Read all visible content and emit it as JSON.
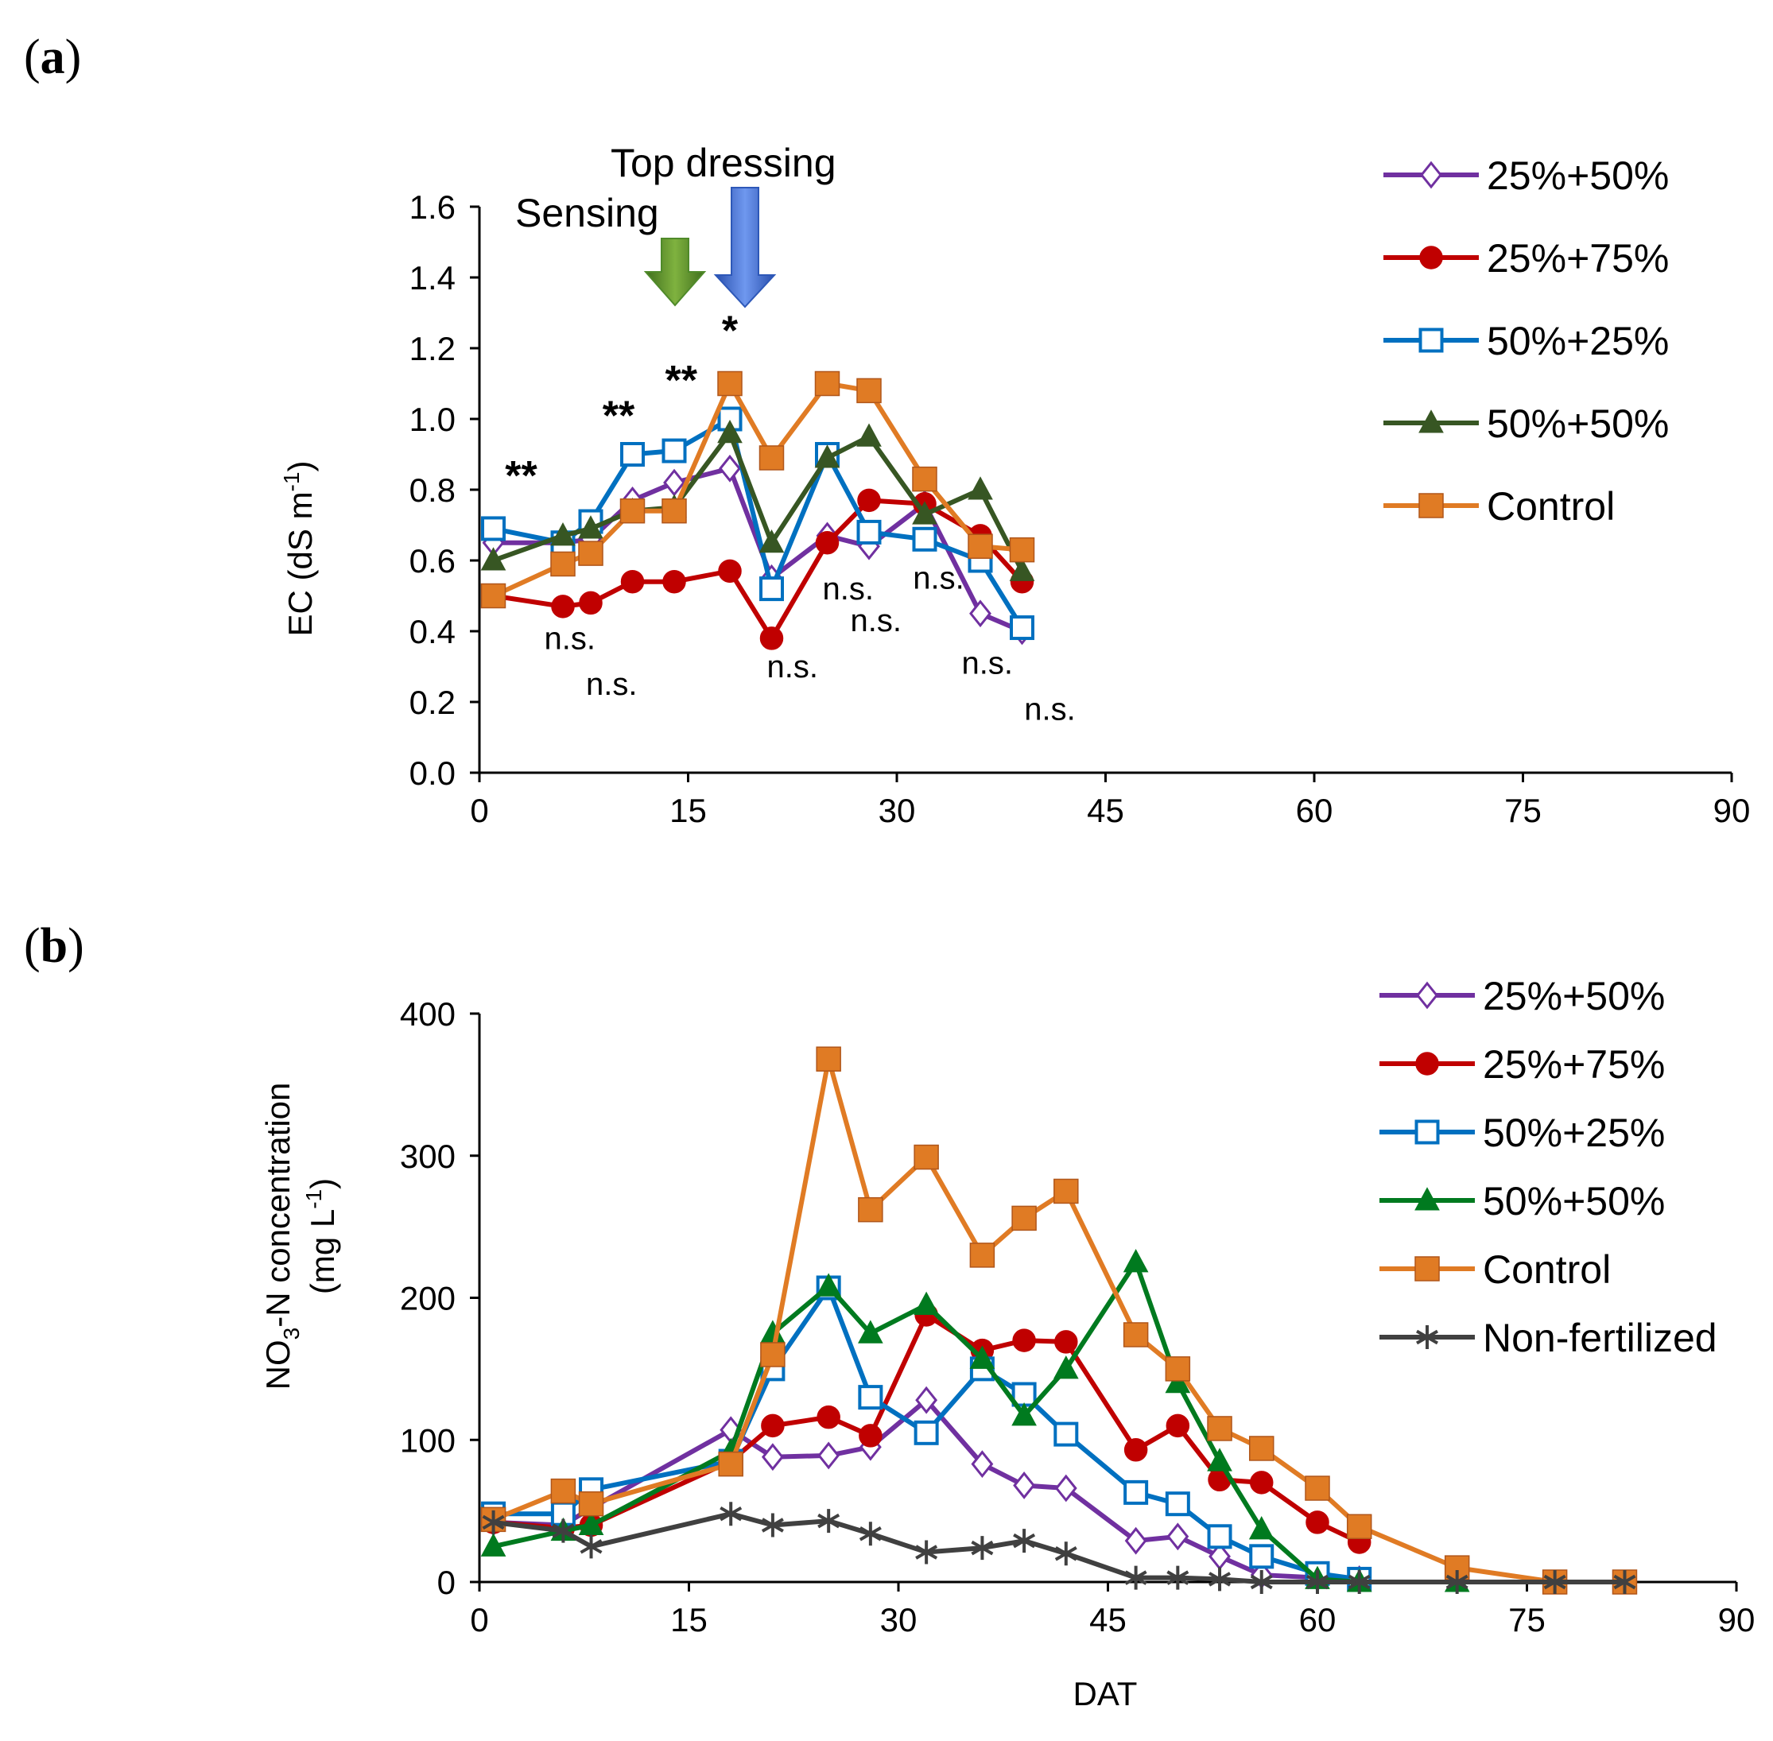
{
  "chart_data": [
    {
      "panel": "(a)",
      "panel_letter": "a",
      "type": "line",
      "xlabel": "",
      "ylabel": "EC  (dS m-1)",
      "ylabel_main": "EC  (dS m",
      "ylabel_sup": "-1",
      "ylabel_close": ")",
      "xlim": [
        0,
        90
      ],
      "ylim": [
        0,
        1.6
      ],
      "xticks": [
        0,
        15,
        30,
        45,
        60,
        75,
        90
      ],
      "yticks": [
        "0.0",
        "0.2",
        "0.4",
        "0.6",
        "0.8",
        "1.0",
        "1.2",
        "1.4",
        "1.6"
      ],
      "grid": false,
      "legend": "right",
      "series": [
        {
          "name": "25%+50%",
          "color": "#7030A0",
          "marker": "open-diamond",
          "x": [
            1,
            6,
            8,
            11,
            14,
            18,
            21,
            25,
            28,
            32,
            36,
            39
          ],
          "y": [
            0.65,
            0.65,
            0.66,
            0.77,
            0.82,
            0.86,
            0.55,
            0.67,
            0.64,
            0.76,
            0.45,
            0.4
          ]
        },
        {
          "name": "25%+75%",
          "color": "#C00000",
          "marker": "filled-circle",
          "x": [
            1,
            6,
            8,
            11,
            14,
            18,
            21,
            25,
            28,
            32,
            36,
            39
          ],
          "y": [
            0.5,
            0.47,
            0.48,
            0.54,
            0.54,
            0.57,
            0.38,
            0.65,
            0.77,
            0.76,
            0.67,
            0.54
          ]
        },
        {
          "name": "50%+25%",
          "color": "#0070C0",
          "marker": "open-square",
          "x": [
            1,
            6,
            8,
            11,
            14,
            18,
            21,
            25,
            28,
            32,
            36,
            39
          ],
          "y": [
            0.69,
            0.65,
            0.71,
            0.9,
            0.91,
            1.0,
            0.52,
            0.9,
            0.68,
            0.66,
            0.6,
            0.41
          ]
        },
        {
          "name": "50%+50%",
          "color": "#375623",
          "marker": "filled-triangle",
          "x": [
            1,
            6,
            8,
            11,
            14,
            18,
            21,
            25,
            28,
            32,
            36,
            39
          ],
          "y": [
            0.6,
            0.67,
            0.69,
            0.74,
            0.75,
            0.96,
            0.65,
            0.89,
            0.95,
            0.73,
            0.8,
            0.57
          ]
        },
        {
          "name": "Control",
          "color": "#E07B24",
          "marker": "filled-square",
          "x": [
            1,
            6,
            8,
            11,
            14,
            18,
            21,
            25,
            28,
            32,
            36,
            39
          ],
          "y": [
            0.5,
            0.59,
            0.62,
            0.74,
            0.74,
            1.1,
            0.89,
            1.1,
            1.08,
            0.83,
            0.64,
            0.63
          ]
        }
      ],
      "annotations": {
        "top_dressing": "Top dressing",
        "sensing": "Sensing",
        "stars": [
          {
            "text": "**",
            "x": 3,
            "y": 0.8
          },
          {
            "text": "**",
            "x": 10,
            "y": 0.97
          },
          {
            "text": "**",
            "x": 14.5,
            "y": 1.07
          },
          {
            "text": "*",
            "x": 18,
            "y": 1.21
          }
        ],
        "ns": [
          {
            "text": "n.s.",
            "x": 6.5,
            "y": 0.35
          },
          {
            "text": "n.s.",
            "x": 9.5,
            "y": 0.22
          },
          {
            "text": "n.s.",
            "x": 22.5,
            "y": 0.27
          },
          {
            "text": "n.s.",
            "x": 26.5,
            "y": 0.49
          },
          {
            "text": "n.s.",
            "x": 28.5,
            "y": 0.4
          },
          {
            "text": "n.s.",
            "x": 33,
            "y": 0.52
          },
          {
            "text": "n.s.",
            "x": 36.5,
            "y": 0.28
          },
          {
            "text": "n.s.",
            "x": 41,
            "y": 0.15
          }
        ]
      }
    },
    {
      "panel": "(b)",
      "panel_letter": "b",
      "type": "line",
      "xlabel": "DAT",
      "ylabel": "NO3-N concentration (mg L-1)",
      "ylabel_line1_a": "NO",
      "ylabel_line1_sub": "3",
      "ylabel_line1_b": "-N concentration",
      "ylabel_line2_a": "(mg L",
      "ylabel_line2_sup": "-1",
      "ylabel_line2_b": ")",
      "xlim": [
        0,
        90
      ],
      "ylim": [
        0,
        400
      ],
      "xticks": [
        0,
        15,
        30,
        45,
        60,
        75,
        90
      ],
      "yticks": [
        "0",
        "100",
        "200",
        "300",
        "400"
      ],
      "grid": false,
      "legend": "top-right",
      "series": [
        {
          "name": "25%+50%",
          "color": "#7030A0",
          "marker": "open-diamond",
          "x": [
            1,
            6,
            8,
            18,
            21,
            25,
            28,
            32,
            36,
            39,
            42,
            47,
            50,
            53,
            56,
            60,
            63
          ],
          "y": [
            42,
            40,
            52,
            107,
            88,
            89,
            95,
            128,
            83,
            68,
            66,
            29,
            32,
            18,
            5,
            3,
            2
          ]
        },
        {
          "name": "25%+75%",
          "color": "#C00000",
          "marker": "filled-circle",
          "x": [
            1,
            6,
            8,
            18,
            21,
            25,
            28,
            32,
            36,
            39,
            42,
            47,
            50,
            53,
            56,
            60,
            63
          ],
          "y": [
            42,
            38,
            40,
            85,
            110,
            116,
            103,
            188,
            163,
            170,
            169,
            93,
            110,
            72,
            70,
            42,
            28
          ]
        },
        {
          "name": "50%+25%",
          "color": "#0070C0",
          "marker": "open-square",
          "x": [
            1,
            6,
            8,
            18,
            21,
            25,
            28,
            32,
            36,
            39,
            42,
            47,
            50,
            53,
            56,
            60,
            63
          ],
          "y": [
            48,
            48,
            65,
            85,
            150,
            207,
            130,
            105,
            150,
            132,
            104,
            63,
            55,
            32,
            18,
            6,
            2
          ]
        },
        {
          "name": "50%+50%",
          "color": "#007A1F",
          "marker": "filled-triangle",
          "x": [
            1,
            6,
            8,
            18,
            21,
            25,
            28,
            32,
            36,
            39,
            42,
            47,
            50,
            53,
            56,
            60,
            63,
            70
          ],
          "y": [
            25,
            36,
            40,
            92,
            175,
            208,
            175,
            195,
            157,
            117,
            150,
            225,
            140,
            85,
            37,
            2,
            0,
            0
          ]
        },
        {
          "name": "Control",
          "color": "#E07B24",
          "marker": "filled-square",
          "x": [
            1,
            6,
            8,
            18,
            21,
            25,
            28,
            32,
            36,
            39,
            42,
            47,
            50,
            53,
            56,
            60,
            63,
            70,
            77,
            82
          ],
          "y": [
            44,
            64,
            55,
            83,
            160,
            368,
            262,
            299,
            230,
            256,
            275,
            174,
            150,
            108,
            94,
            66,
            39,
            10,
            0,
            0
          ]
        },
        {
          "name": "Non-fertilized",
          "color": "#404040",
          "marker": "star",
          "x": [
            1,
            6,
            8,
            18,
            21,
            25,
            28,
            32,
            36,
            39,
            42,
            47,
            50,
            53,
            56,
            60,
            63,
            70,
            77,
            82
          ],
          "y": [
            42,
            36,
            25,
            48,
            40,
            43,
            34,
            21,
            24,
            29,
            20,
            3,
            3,
            2,
            0,
            0,
            0,
            0,
            0,
            0
          ]
        }
      ]
    }
  ]
}
